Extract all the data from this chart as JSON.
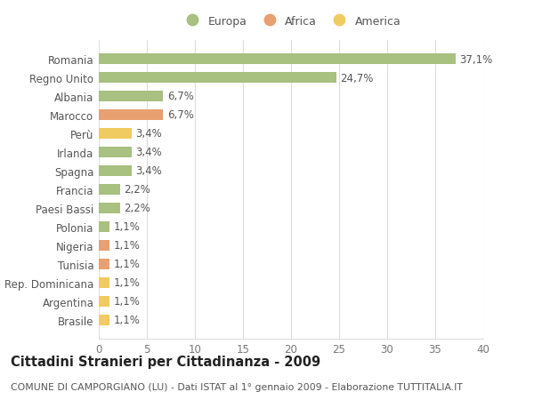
{
  "countries": [
    "Romania",
    "Regno Unito",
    "Albania",
    "Marocco",
    "Perù",
    "Irlanda",
    "Spagna",
    "Francia",
    "Paesi Bassi",
    "Polonia",
    "Nigeria",
    "Tunisia",
    "Rep. Dominicana",
    "Argentina",
    "Brasile"
  ],
  "values": [
    37.1,
    24.7,
    6.7,
    6.7,
    3.4,
    3.4,
    3.4,
    2.2,
    2.2,
    1.1,
    1.1,
    1.1,
    1.1,
    1.1,
    1.1
  ],
  "labels": [
    "37,1%",
    "24,7%",
    "6,7%",
    "6,7%",
    "3,4%",
    "3,4%",
    "3,4%",
    "2,2%",
    "2,2%",
    "1,1%",
    "1,1%",
    "1,1%",
    "1,1%",
    "1,1%",
    "1,1%"
  ],
  "continents": [
    "Europa",
    "Europa",
    "Europa",
    "Africa",
    "America",
    "Europa",
    "Europa",
    "Europa",
    "Europa",
    "Europa",
    "Africa",
    "Africa",
    "America",
    "America",
    "America"
  ],
  "colors": {
    "Europa": "#a8c080",
    "Africa": "#e8a070",
    "America": "#f0cc60"
  },
  "xlim": [
    0,
    40
  ],
  "xticks": [
    0,
    5,
    10,
    15,
    20,
    25,
    30,
    35,
    40
  ],
  "background_color": "#ffffff",
  "grid_color": "#dddddd",
  "title": "Cittadini Stranieri per Cittadinanza - 2009",
  "subtitle": "COMUNE DI CAMPORGIANO (LU) - Dati ISTAT al 1° gennaio 2009 - Elaborazione TUTTITALIA.IT",
  "bar_height": 0.55,
  "label_fontsize": 8.5,
  "tick_fontsize": 8.5,
  "title_fontsize": 10.5,
  "subtitle_fontsize": 7.8,
  "legend_order": [
    "Europa",
    "Africa",
    "America"
  ]
}
